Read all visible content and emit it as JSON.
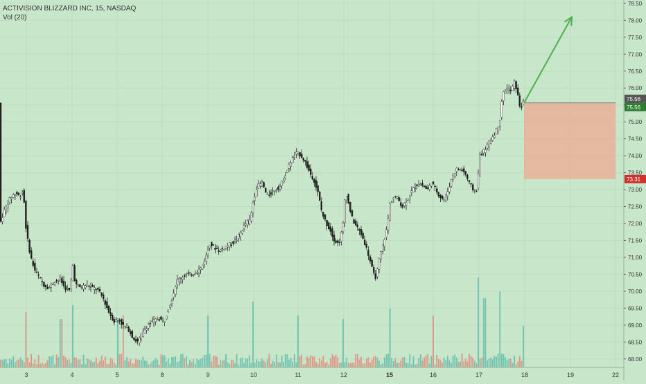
{
  "header": {
    "title": "ACTIVISION BLIZZARD INC, 15, NASDAQ",
    "volume_label": "Vol (20)"
  },
  "colors": {
    "background": "#c8e6c9",
    "up": "#26a69a",
    "down": "#ef5350",
    "candle": "#1b1b1b",
    "arrow": "#4caf50",
    "zone": "#f4a08a",
    "tag_current": "#2e7d32",
    "tag_stop": "#d32f2f"
  },
  "chart_data": {
    "type": "candlestick",
    "title": "ACTIVISION BLIZZARD INC, 15, NASDAQ",
    "indicator": "Vol (20)",
    "price_axis": {
      "min": 67.75,
      "max": 78.6,
      "ticks": [
        "68.00",
        "68.50",
        "69.00",
        "69.50",
        "70.00",
        "70.50",
        "71.00",
        "71.50",
        "72.00",
        "72.50",
        "73.00",
        "73.50",
        "74.00",
        "74.50",
        "75.00",
        "75.50",
        "76.00",
        "76.50",
        "77.00",
        "77.50",
        "78.00",
        "78.50"
      ]
    },
    "date_axis": {
      "labels": [
        "3",
        "4",
        "5",
        "8",
        "9",
        "10",
        "11",
        "12",
        "15",
        "16",
        "17",
        "18",
        "19",
        "22"
      ]
    },
    "price_path": [
      [
        0,
        71.9
      ],
      [
        6,
        72.3
      ],
      [
        12,
        72.6
      ],
      [
        18,
        72.8
      ],
      [
        24,
        72.9
      ],
      [
        30,
        72.8
      ],
      [
        35,
        73.0
      ],
      [
        38,
        72.0
      ],
      [
        42,
        71.4
      ],
      [
        47,
        70.9
      ],
      [
        52,
        70.6
      ],
      [
        58,
        70.4
      ],
      [
        64,
        70.2
      ],
      [
        72,
        70.1
      ],
      [
        80,
        70.3
      ],
      [
        88,
        70.35
      ],
      [
        95,
        70.1
      ],
      [
        102,
        70.0
      ],
      [
        106,
        70.8
      ],
      [
        110,
        70.2
      ],
      [
        118,
        70.1
      ],
      [
        126,
        70.2
      ],
      [
        134,
        70.1
      ],
      [
        142,
        70.05
      ],
      [
        150,
        69.8
      ],
      [
        158,
        69.4
      ],
      [
        166,
        69.1
      ],
      [
        172,
        69.2
      ],
      [
        178,
        69.0
      ],
      [
        186,
        68.9
      ],
      [
        194,
        68.6
      ],
      [
        200,
        68.5
      ],
      [
        208,
        68.8
      ],
      [
        214,
        69.0
      ],
      [
        222,
        69.1
      ],
      [
        230,
        69.2
      ],
      [
        238,
        69.1
      ],
      [
        244,
        69.5
      ],
      [
        250,
        69.8
      ],
      [
        256,
        70.3
      ],
      [
        262,
        70.4
      ],
      [
        270,
        70.5
      ],
      [
        278,
        70.5
      ],
      [
        286,
        70.6
      ],
      [
        292,
        70.7
      ],
      [
        298,
        71.0
      ],
      [
        304,
        71.4
      ],
      [
        310,
        71.3
      ],
      [
        318,
        71.2
      ],
      [
        326,
        71.3
      ],
      [
        334,
        71.4
      ],
      [
        342,
        71.5
      ],
      [
        350,
        71.8
      ],
      [
        356,
        72.0
      ],
      [
        362,
        72.1
      ],
      [
        366,
        72.6
      ],
      [
        372,
        73.1
      ],
      [
        380,
        73.2
      ],
      [
        386,
        72.8
      ],
      [
        392,
        72.9
      ],
      [
        398,
        73.0
      ],
      [
        406,
        73.1
      ],
      [
        414,
        73.5
      ],
      [
        420,
        73.8
      ],
      [
        426,
        74.0
      ],
      [
        430,
        74.1
      ],
      [
        436,
        74.0
      ],
      [
        442,
        73.8
      ],
      [
        448,
        73.5
      ],
      [
        454,
        73.3
      ],
      [
        460,
        72.9
      ],
      [
        466,
        72.3
      ],
      [
        472,
        72.0
      ],
      [
        478,
        71.8
      ],
      [
        484,
        71.5
      ],
      [
        490,
        71.4
      ],
      [
        496,
        71.9
      ],
      [
        500,
        73.0
      ],
      [
        504,
        72.6
      ],
      [
        510,
        72.1
      ],
      [
        516,
        71.9
      ],
      [
        522,
        71.7
      ],
      [
        528,
        71.4
      ],
      [
        534,
        71.0
      ],
      [
        540,
        70.5
      ],
      [
        544,
        70.4
      ],
      [
        548,
        70.9
      ],
      [
        554,
        71.4
      ],
      [
        560,
        71.9
      ],
      [
        564,
        72.6
      ],
      [
        570,
        72.8
      ],
      [
        576,
        72.7
      ],
      [
        582,
        72.5
      ],
      [
        588,
        72.7
      ],
      [
        594,
        72.9
      ],
      [
        600,
        73.1
      ],
      [
        606,
        73.2
      ],
      [
        612,
        73.1
      ],
      [
        618,
        73.0
      ],
      [
        624,
        73.2
      ],
      [
        630,
        73.0
      ],
      [
        636,
        72.8
      ],
      [
        642,
        72.7
      ],
      [
        648,
        73.0
      ],
      [
        654,
        73.4
      ],
      [
        660,
        73.6
      ],
      [
        666,
        73.6
      ],
      [
        672,
        73.5
      ],
      [
        678,
        73.2
      ],
      [
        684,
        73.0
      ],
      [
        690,
        73.0
      ],
      [
        693,
        74.0
      ],
      [
        698,
        74.1
      ],
      [
        704,
        74.3
      ],
      [
        710,
        74.5
      ],
      [
        716,
        74.7
      ],
      [
        722,
        75.0
      ],
      [
        726,
        75.8
      ],
      [
        732,
        76.0
      ],
      [
        738,
        75.9
      ],
      [
        744,
        76.2
      ],
      [
        748,
        75.8
      ],
      [
        752,
        75.4
      ],
      [
        756,
        75.56
      ]
    ],
    "prices": {
      "current": "75.56",
      "entry": "75.56",
      "stop": "73.31"
    },
    "annotations": {
      "arrow": {
        "from_x": 756,
        "from_price": 75.56,
        "to_x": 825,
        "to_price": 78.1
      },
      "risk_zone": {
        "x_from": 756,
        "x_to": 888,
        "top": 75.56,
        "bottom": 73.31
      }
    }
  }
}
